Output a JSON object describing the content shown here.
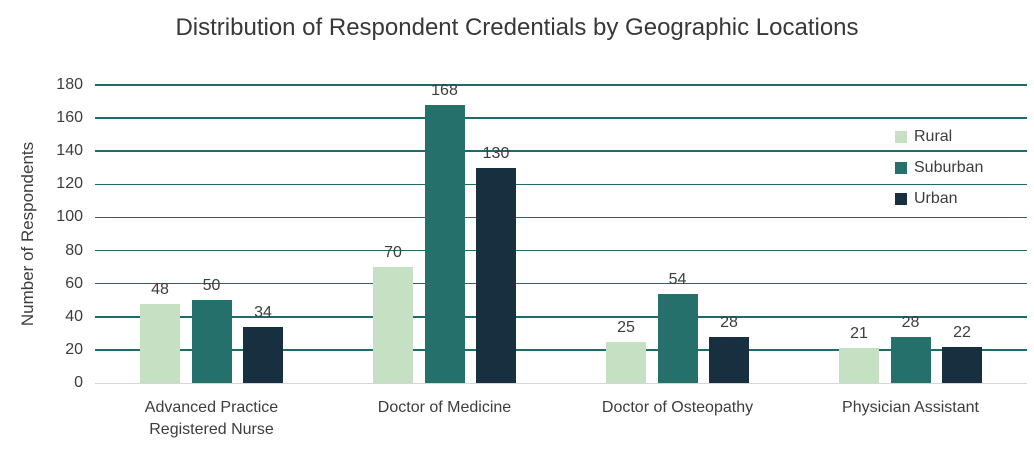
{
  "chart_data": {
    "type": "bar",
    "title": "Distribution of Respondent Credentials by Geographic Locations",
    "ylabel": "Number of Respondents",
    "xlabel": "",
    "categories": [
      "Advanced Practice Registered Nurse",
      "Doctor of Medicine",
      "Doctor of Osteopathy",
      "Physician Assistant"
    ],
    "series": [
      {
        "name": "Rural",
        "color": "#c5e0c3",
        "values": [
          48,
          70,
          25,
          21
        ]
      },
      {
        "name": "Suburban",
        "color": "#26706b",
        "values": [
          50,
          168,
          54,
          28
        ]
      },
      {
        "name": "Urban",
        "color": "#172f3e",
        "values": [
          34,
          130,
          28,
          22
        ]
      }
    ],
    "ylim": [
      0,
      180
    ],
    "yticks": [
      0,
      20,
      40,
      60,
      80,
      100,
      120,
      140,
      160,
      180
    ],
    "grid": true,
    "gridline_color": "#1e6b6b",
    "baseline_color": "#d6d6d6",
    "legend_position": "right",
    "data_labels": true
  }
}
